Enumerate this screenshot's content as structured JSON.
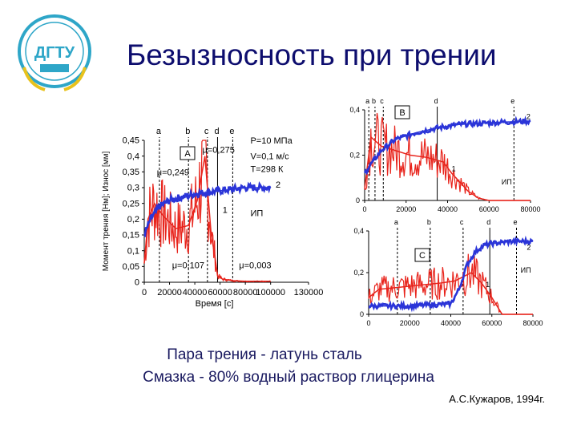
{
  "slide": {
    "title": "Безызносность при трении",
    "caption_line1": "Пара трения - латунь сталь",
    "caption_line2": "Смазка - 80% водный раствор глицерина",
    "author": "А.С.Кужаров, 1994г.",
    "logo_text": "ДГТУ"
  },
  "colors": {
    "friction": "#e8241c",
    "wear": "#2b35d8",
    "text": "#1a1a60"
  },
  "chart_data": [
    {
      "id": "A",
      "type": "line",
      "panel_label": "A",
      "xlabel": "Время [с]",
      "ylabel": "Момент трения [Нм]; Износ [мм]",
      "xlim": [
        0,
        130000
      ],
      "ylim": [
        0,
        0.45
      ],
      "x_ticks": [
        "0",
        "20000",
        "40000",
        "60000",
        "80000",
        "100000",
        "130000"
      ],
      "x_tick_values": [
        0,
        20000,
        40000,
        60000,
        80000,
        100000,
        130000
      ],
      "y_ticks": [
        "0",
        "0,05",
        "0,1",
        "0,15",
        "0,2",
        "0,25",
        "0,3",
        "0,35",
        "0,4",
        "0,45"
      ],
      "y_tick_values": [
        0,
        0.05,
        0.1,
        0.15,
        0.2,
        0.25,
        0.3,
        0.35,
        0.4,
        0.45
      ],
      "phase_labels": [
        "a",
        "b",
        "c",
        "d",
        "e"
      ],
      "phase_x": [
        12000,
        35000,
        50000,
        58000,
        70000
      ],
      "annotations": [
        {
          "text": "μ=0,249",
          "x": 10000,
          "y": 0.34
        },
        {
          "text": "μ=0,275",
          "x": 46000,
          "y": 0.41
        },
        {
          "text": "μ=0,107",
          "x": 22000,
          "y": 0.045
        },
        {
          "text": "μ=0,003",
          "x": 75000,
          "y": 0.045
        },
        {
          "text": "P=10 МПа",
          "x": 84000,
          "y": 0.44
        },
        {
          "text": "V=0,1 м/с",
          "x": 84000,
          "y": 0.39
        },
        {
          "text": "T=298 К",
          "x": 84000,
          "y": 0.35
        },
        {
          "text": "ИП",
          "x": 84000,
          "y": 0.21
        },
        {
          "text": "1",
          "x": 62000,
          "y": 0.22
        },
        {
          "text": "2",
          "x": 104000,
          "y": 0.3
        }
      ],
      "series": [
        {
          "name": "1",
          "role": "friction",
          "x": [
            0,
            3000,
            8000,
            15000,
            25000,
            35000,
            42000,
            48000,
            50000,
            53000,
            56000,
            58000,
            62000,
            70000,
            80000,
            90000,
            100000
          ],
          "values": [
            0.06,
            0.2,
            0.25,
            0.21,
            0.17,
            0.18,
            0.26,
            0.4,
            0.3,
            0.15,
            0.08,
            0.02,
            0.01,
            0.005,
            0.003,
            0.003,
            0.003
          ]
        },
        {
          "name": "2",
          "role": "wear",
          "x": [
            0,
            5000,
            12000,
            20000,
            30000,
            40000,
            50000,
            60000,
            70000,
            80000,
            90000,
            100000
          ],
          "values": [
            0.15,
            0.2,
            0.24,
            0.26,
            0.27,
            0.28,
            0.285,
            0.29,
            0.295,
            0.3,
            0.3,
            0.3
          ]
        }
      ]
    },
    {
      "id": "B",
      "type": "line",
      "panel_label": "B",
      "xlim": [
        0,
        80000
      ],
      "ylim": [
        0,
        0.4
      ],
      "x_ticks": [
        "0",
        "20000",
        "40000",
        "60000",
        "80000"
      ],
      "x_tick_values": [
        0,
        20000,
        40000,
        60000,
        80000
      ],
      "y_ticks": [
        "0",
        "0,2",
        "0,4"
      ],
      "y_tick_values": [
        0,
        0.2,
        0.4
      ],
      "phase_labels": [
        "a",
        "b",
        "c",
        "d",
        "e"
      ],
      "phase_x": [
        2000,
        5000,
        9000,
        35000,
        72000
      ],
      "annotations": [
        {
          "text": "1",
          "x": 42000,
          "y": 0.13
        },
        {
          "text": "2",
          "x": 78000,
          "y": 0.36
        },
        {
          "text": "ИП",
          "x": 66000,
          "y": 0.07
        }
      ],
      "series": [
        {
          "name": "1",
          "role": "friction",
          "x": [
            0,
            3000,
            8000,
            15000,
            22000,
            30000,
            38000,
            42000,
            46000,
            50000,
            55000,
            60000,
            70000,
            80000
          ],
          "values": [
            0.05,
            0.28,
            0.24,
            0.22,
            0.2,
            0.19,
            0.17,
            0.12,
            0.08,
            0.04,
            0.01,
            0.0,
            0.0,
            0.0
          ]
        },
        {
          "name": "2",
          "role": "wear",
          "x": [
            0,
            3000,
            8000,
            15000,
            25000,
            35000,
            45000,
            55000,
            65000,
            80000
          ],
          "values": [
            0.12,
            0.16,
            0.22,
            0.27,
            0.3,
            0.32,
            0.335,
            0.34,
            0.345,
            0.35
          ]
        }
      ]
    },
    {
      "id": "C",
      "type": "line",
      "panel_label": "C",
      "xlim": [
        0,
        80000
      ],
      "ylim": [
        0,
        0.4
      ],
      "x_ticks": [
        "0",
        "20000",
        "40000",
        "60000",
        "80000"
      ],
      "x_tick_values": [
        0,
        20000,
        40000,
        60000,
        80000
      ],
      "y_ticks": [
        "0",
        "0,2",
        "0,4"
      ],
      "y_tick_values": [
        0,
        0.2,
        0.4
      ],
      "phase_labels": [
        "a",
        "b",
        "c",
        "d",
        "e"
      ],
      "phase_x": [
        14000,
        30000,
        46000,
        59000,
        72000
      ],
      "annotations": [
        {
          "text": "1",
          "x": 57000,
          "y": 0.13
        },
        {
          "text": "2",
          "x": 77000,
          "y": 0.31
        },
        {
          "text": "ИП",
          "x": 74000,
          "y": 0.2
        }
      ],
      "series": [
        {
          "name": "1",
          "role": "friction",
          "x": [
            0,
            5000,
            15000,
            25000,
            35000,
            42000,
            46000,
            50000,
            55000,
            60000,
            65000,
            70000,
            80000
          ],
          "values": [
            0.08,
            0.12,
            0.13,
            0.14,
            0.15,
            0.16,
            0.18,
            0.2,
            0.15,
            0.08,
            0.0,
            0.0,
            0.0
          ]
        },
        {
          "name": "2",
          "role": "wear",
          "x": [
            0,
            10000,
            20000,
            30000,
            40000,
            44000,
            48000,
            52000,
            56000,
            60000,
            70000,
            80000
          ],
          "values": [
            0.04,
            0.04,
            0.04,
            0.045,
            0.05,
            0.12,
            0.24,
            0.3,
            0.33,
            0.34,
            0.35,
            0.35
          ]
        }
      ]
    }
  ]
}
